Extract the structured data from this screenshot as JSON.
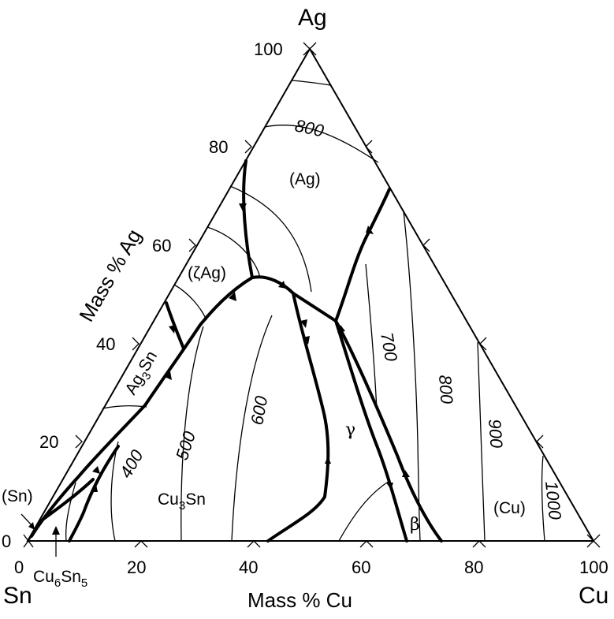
{
  "corners": {
    "top": "Ag",
    "left": "Sn",
    "right": "Cu"
  },
  "axis_titles": {
    "left": "Mass % Ag",
    "bottom": "Mass % Cu"
  },
  "ticks_left": [
    "0",
    "20",
    "40",
    "60",
    "80",
    "100"
  ],
  "ticks_bottom": [
    "0",
    "20",
    "40",
    "60",
    "80",
    "100"
  ],
  "phase_labels": {
    "ag": "(Ag)",
    "zeta_ag": "(ζAg)",
    "ag3sn": "Ag3Sn",
    "sn": "(Sn)",
    "cu6sn5": "Cu6Sn5",
    "cu3sn": "Cu3Sn",
    "gamma": "γ",
    "beta": "β",
    "cu": "(Cu)"
  },
  "isotherm_labels": [
    "800",
    "700",
    "800",
    "600",
    "500",
    "400",
    "900",
    "1000"
  ],
  "colors": {
    "ink": "#000000",
    "background": "#ffffff"
  }
}
